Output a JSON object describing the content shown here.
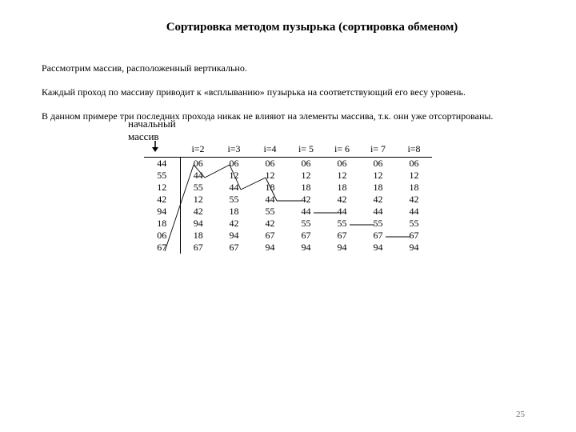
{
  "page": {
    "title": "Сортировка методом пузырька (сортировка обменом)",
    "paragraphs": {
      "p1": "Рассмотрим массив, расположенный вертикально.",
      "p2": "Каждый проход по массиву приводит к «всплыванию» пузырька на соответствующий его весу уровень.",
      "p3": "В данном примере три последних прохода никак не влияют на элементы массива, т.к. они уже отсортированы."
    },
    "page_number": "25"
  },
  "table": {
    "initial_label_line1": "начальный",
    "initial_label_line2": "массив",
    "headers": [
      "",
      "i=2",
      "i=3",
      "i=4",
      "i= 5",
      "i= 6",
      "i= 7",
      "i=8"
    ],
    "rows": [
      [
        "44",
        "06",
        "06",
        "06",
        "06",
        "06",
        "06",
        "06"
      ],
      [
        "55",
        "44",
        "12",
        "12",
        "12",
        "12",
        "12",
        "12"
      ],
      [
        "12",
        "55",
        "44",
        "18",
        "18",
        "18",
        "18",
        "18"
      ],
      [
        "42",
        "12",
        "55",
        "44",
        "42",
        "42",
        "42",
        "42"
      ],
      [
        "94",
        "42",
        "18",
        "55",
        "44",
        "44",
        "44",
        "44"
      ],
      [
        "18",
        "94",
        "42",
        "42",
        "55",
        "55",
        "55",
        "55"
      ],
      [
        "06",
        "18",
        "94",
        "67",
        "67",
        "67",
        "67",
        "67"
      ],
      [
        "67",
        "67",
        "67",
        "94",
        "94",
        "94",
        "94",
        "94"
      ]
    ]
  },
  "svg": {
    "stroke": "#000000",
    "stroke_width": 0.9,
    "lines": [
      [
        26,
        135,
        62,
        27
      ],
      [
        62,
        27,
        76,
        43
      ],
      [
        76,
        43,
        107,
        27
      ],
      [
        107,
        27,
        121,
        58
      ],
      [
        121,
        58,
        152,
        43
      ],
      [
        152,
        43,
        166,
        72
      ],
      [
        166,
        72,
        197,
        72
      ],
      [
        212,
        87,
        243,
        87
      ],
      [
        257,
        102,
        288,
        102
      ],
      [
        302,
        117,
        333,
        117
      ]
    ]
  },
  "style": {
    "bg": "#ffffff",
    "text": "#000000",
    "pagenum_color": "#6b6b6b",
    "title_fontsize": 15,
    "body_fontsize": 12
  }
}
